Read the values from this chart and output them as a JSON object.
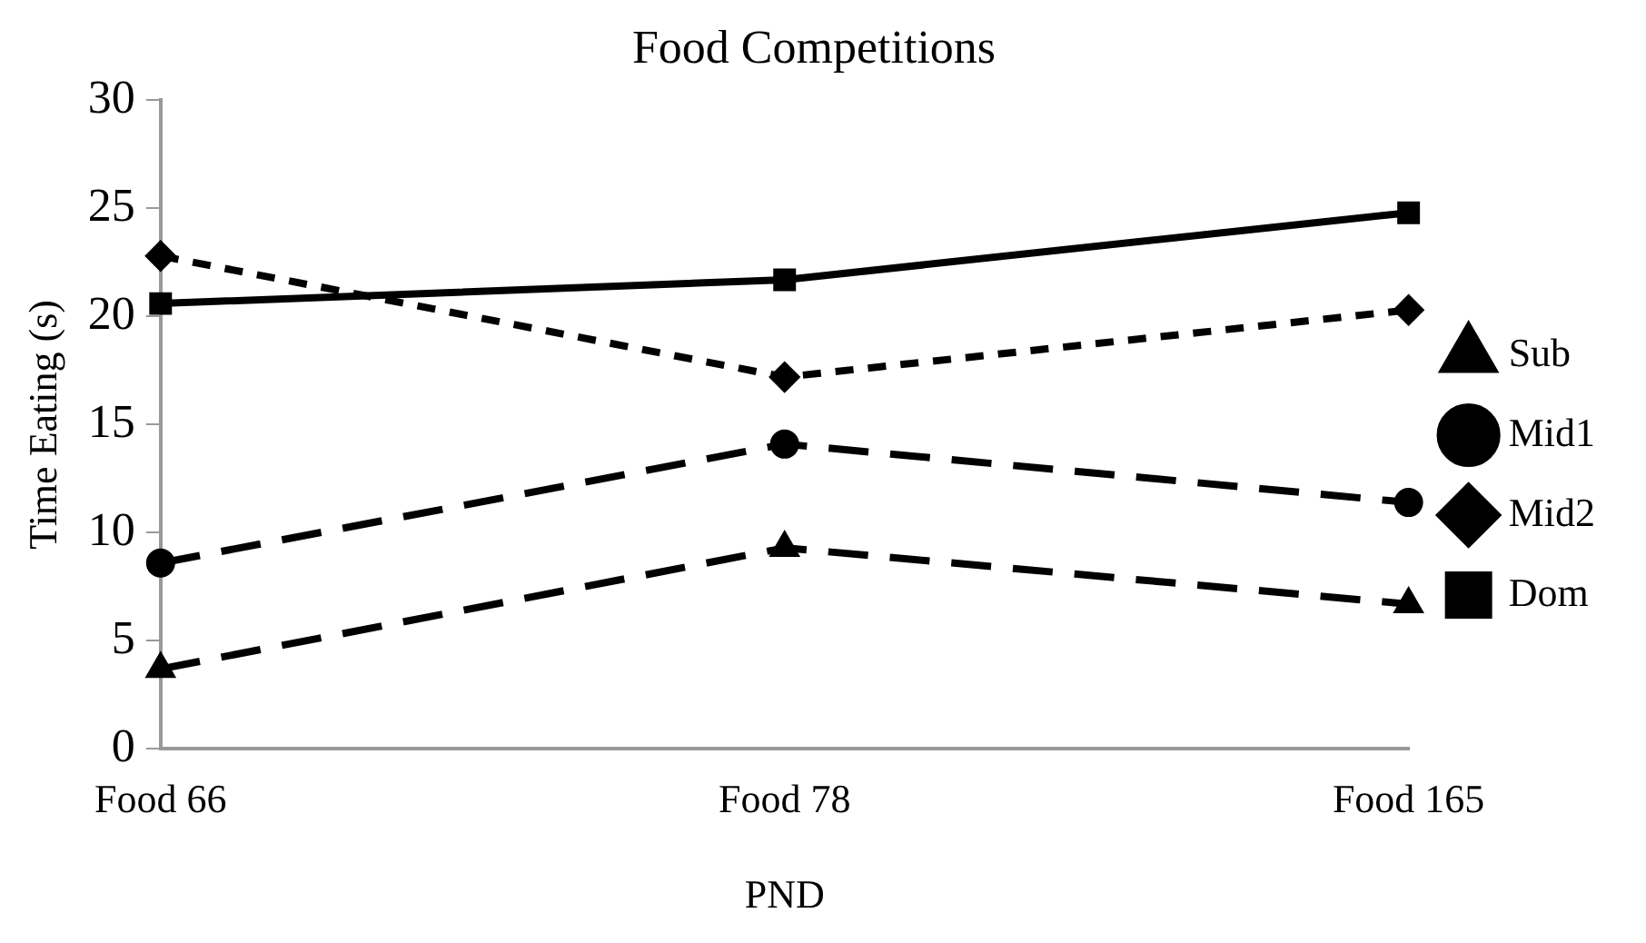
{
  "chart_data": {
    "type": "line",
    "title": "Food Competitions",
    "xlabel": "PND",
    "ylabel": "Time Eating (s)",
    "categories": [
      "Food 66",
      "Food 78",
      "Food 165"
    ],
    "series": [
      {
        "name": "Sub",
        "color": "#000000",
        "values": [
          3.7,
          9.3,
          6.7
        ],
        "marker": "triangle",
        "line_style": "dashed"
      },
      {
        "name": "Mid1",
        "color": "#000000",
        "values": [
          8.6,
          14.1,
          11.4
        ],
        "marker": "circle",
        "line_style": "dashed"
      },
      {
        "name": "Mid2",
        "color": "#000000",
        "values": [
          22.8,
          17.2,
          20.3
        ],
        "marker": "diamond",
        "line_style": "dotted"
      },
      {
        "name": "Dom",
        "color": "#000000",
        "values": [
          20.6,
          21.7,
          24.8
        ],
        "marker": "square",
        "line_style": "solid"
      }
    ],
    "ylim": [
      0,
      30
    ],
    "yticks": [
      0,
      5,
      10,
      15,
      20,
      25,
      30
    ],
    "grid": false,
    "legend": "right"
  }
}
